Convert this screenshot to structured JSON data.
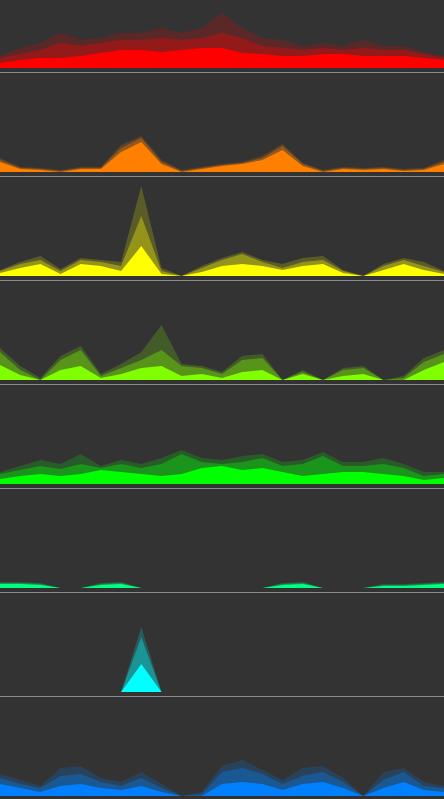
{
  "chart_data": [
    {
      "type": "area",
      "x": [
        0,
        1,
        2,
        3,
        4,
        5,
        6,
        7,
        8,
        9,
        10,
        11,
        12,
        13,
        14,
        15,
        16,
        17,
        18,
        19,
        20,
        21,
        22
      ],
      "xlim": [
        0,
        22
      ],
      "ylim": [
        0,
        100
      ],
      "series": [
        {
          "color": "#ff0000",
          "opacity": 0.2,
          "values": [
            12,
            20,
            25,
            35,
            28,
            30,
            35,
            35,
            40,
            35,
            40,
            55,
            40,
            30,
            28,
            22,
            25,
            22,
            28,
            22,
            22,
            16,
            12
          ]
        },
        {
          "color": "#ff0000",
          "opacity": 0.35,
          "values": [
            10,
            14,
            18,
            25,
            22,
            25,
            28,
            28,
            30,
            28,
            30,
            35,
            30,
            22,
            20,
            18,
            20,
            18,
            20,
            18,
            18,
            14,
            10
          ]
        },
        {
          "color": "#ff0000",
          "opacity": 1,
          "values": [
            5,
            8,
            10,
            10,
            12,
            15,
            18,
            18,
            16,
            18,
            20,
            20,
            15,
            14,
            12,
            12,
            14,
            14,
            12,
            12,
            12,
            10,
            8
          ]
        }
      ]
    },
    {
      "type": "area",
      "x": [
        0,
        1,
        2,
        3,
        4,
        5,
        6,
        7,
        8,
        9,
        10,
        11,
        12,
        13,
        14,
        15,
        16,
        17,
        18,
        19,
        20,
        21,
        22
      ],
      "xlim": [
        0,
        22
      ],
      "ylim": [
        0,
        100
      ],
      "series": [
        {
          "color": "#ff8000",
          "opacity": 0.2,
          "values": [
            14,
            5,
            4,
            2,
            5,
            5,
            27,
            36,
            12,
            2,
            5,
            8,
            10,
            16,
            28,
            9,
            2,
            5,
            4,
            5,
            3,
            4,
            12
          ]
        },
        {
          "color": "#ff8000",
          "opacity": 0.35,
          "values": [
            12,
            4,
            3,
            1,
            4,
            4,
            24,
            34,
            10,
            1,
            4,
            7,
            9,
            14,
            26,
            8,
            1,
            4,
            3,
            4,
            2,
            3,
            10
          ]
        },
        {
          "color": "#ff8000",
          "opacity": 1,
          "values": [
            10,
            3,
            2,
            0,
            3,
            3,
            20,
            30,
            8,
            0,
            3,
            6,
            8,
            12,
            22,
            6,
            0,
            3,
            2,
            3,
            1,
            2,
            8
          ]
        }
      ]
    },
    {
      "type": "area",
      "x": [
        0,
        1,
        2,
        3,
        4,
        5,
        6,
        7,
        8,
        9,
        10,
        11,
        12,
        13,
        14,
        15,
        16,
        17,
        18,
        19,
        20,
        21,
        22
      ],
      "xlim": [
        0,
        22
      ],
      "ylim": [
        0,
        100
      ],
      "series": [
        {
          "color": "#ffff00",
          "opacity": 0.2,
          "values": [
            6,
            14,
            20,
            7,
            18,
            16,
            14,
            90,
            8,
            0,
            10,
            18,
            24,
            16,
            12,
            18,
            20,
            6,
            0,
            12,
            18,
            14,
            5
          ]
        },
        {
          "color": "#ffff00",
          "opacity": 0.35,
          "values": [
            5,
            12,
            16,
            5,
            16,
            14,
            10,
            60,
            5,
            0,
            8,
            16,
            22,
            14,
            8,
            14,
            16,
            5,
            0,
            10,
            16,
            10,
            4
          ]
        },
        {
          "color": "#ffff00",
          "opacity": 1,
          "values": [
            3,
            8,
            12,
            2,
            12,
            10,
            5,
            30,
            2,
            0,
            4,
            10,
            12,
            10,
            6,
            10,
            12,
            3,
            0,
            6,
            12,
            6,
            2
          ]
        }
      ]
    },
    {
      "type": "area",
      "x": [
        0,
        1,
        2,
        3,
        4,
        5,
        6,
        7,
        8,
        9,
        10,
        11,
        12,
        13,
        14,
        15,
        16,
        17,
        18,
        19,
        20,
        21,
        22
      ],
      "xlim": [
        0,
        22
      ],
      "ylim": [
        0,
        100
      ],
      "series": [
        {
          "color": "#80ff00",
          "opacity": 0.2,
          "values": [
            32,
            14,
            2,
            24,
            34,
            6,
            16,
            28,
            55,
            16,
            14,
            8,
            24,
            26,
            0,
            10,
            0,
            12,
            14,
            0,
            4,
            22,
            30
          ]
        },
        {
          "color": "#80ff00",
          "opacity": 0.35,
          "values": [
            28,
            10,
            0,
            20,
            30,
            4,
            12,
            20,
            30,
            14,
            12,
            6,
            20,
            22,
            0,
            8,
            0,
            10,
            12,
            0,
            2,
            18,
            26
          ]
        },
        {
          "color": "#80ff00",
          "opacity": 1,
          "values": [
            15,
            5,
            0,
            10,
            14,
            2,
            6,
            12,
            14,
            4,
            6,
            2,
            8,
            10,
            0,
            6,
            0,
            4,
            6,
            0,
            0,
            10,
            18
          ]
        }
      ]
    },
    {
      "type": "area",
      "x": [
        0,
        1,
        2,
        3,
        4,
        5,
        6,
        7,
        8,
        9,
        10,
        11,
        12,
        13,
        14,
        15,
        16,
        17,
        18,
        19,
        20,
        21,
        22
      ],
      "xlim": [
        0,
        22
      ],
      "ylim": [
        0,
        100
      ],
      "series": [
        {
          "color": "#00ff00",
          "opacity": 0.2,
          "values": [
            12,
            18,
            24,
            20,
            30,
            18,
            24,
            20,
            26,
            34,
            26,
            24,
            28,
            30,
            22,
            24,
            32,
            22,
            22,
            26,
            20,
            12,
            12
          ]
        },
        {
          "color": "#00ff00",
          "opacity": 0.35,
          "values": [
            10,
            14,
            18,
            15,
            20,
            16,
            20,
            16,
            20,
            30,
            22,
            20,
            22,
            26,
            18,
            20,
            28,
            18,
            18,
            20,
            16,
            8,
            10
          ]
        },
        {
          "color": "#00ff00",
          "opacity": 1,
          "values": [
            5,
            8,
            10,
            8,
            10,
            14,
            12,
            10,
            8,
            10,
            16,
            18,
            14,
            16,
            12,
            8,
            10,
            12,
            12,
            10,
            8,
            4,
            6
          ]
        }
      ]
    },
    {
      "type": "area",
      "x": [
        0,
        1,
        2,
        3,
        4,
        5,
        6,
        7,
        8,
        9,
        10,
        11,
        12,
        13,
        14,
        15,
        16,
        17,
        18,
        19,
        20,
        21,
        22
      ],
      "xlim": [
        0,
        22
      ],
      "ylim": [
        0,
        100
      ],
      "series": [
        {
          "color": "#00ff80",
          "opacity": 0.2,
          "values": [
            6,
            6,
            5,
            0,
            0,
            5,
            6,
            0,
            0,
            0,
            0,
            0,
            0,
            0,
            5,
            6,
            0,
            0,
            0,
            4,
            4,
            5,
            6
          ]
        },
        {
          "color": "#00ff80",
          "opacity": 0.35,
          "values": [
            5,
            5,
            4,
            0,
            0,
            4,
            5,
            0,
            0,
            0,
            0,
            0,
            0,
            0,
            4,
            5,
            0,
            0,
            0,
            3,
            3,
            4,
            5
          ]
        },
        {
          "color": "#00ff80",
          "opacity": 1,
          "values": [
            4,
            4,
            3,
            0,
            0,
            3,
            4,
            0,
            0,
            0,
            0,
            0,
            0,
            0,
            3,
            4,
            0,
            0,
            0,
            2,
            2,
            3,
            4
          ]
        }
      ]
    },
    {
      "type": "area",
      "x": [
        0,
        1,
        2,
        3,
        4,
        5,
        6,
        7,
        8,
        9,
        10,
        11,
        12,
        13,
        14,
        15,
        16,
        17,
        18,
        19,
        20,
        21,
        22
      ],
      "xlim": [
        0,
        22
      ],
      "ylim": [
        0,
        100
      ],
      "series": [
        {
          "color": "#00ffff",
          "opacity": 0.2,
          "values": [
            0,
            0,
            0,
            0,
            0,
            0,
            0,
            65,
            0,
            0,
            0,
            0,
            0,
            0,
            0,
            0,
            0,
            0,
            0,
            0,
            0,
            0,
            0
          ]
        },
        {
          "color": "#00ffff",
          "opacity": 0.35,
          "values": [
            0,
            0,
            0,
            0,
            0,
            0,
            0,
            55,
            0,
            0,
            0,
            0,
            0,
            0,
            0,
            0,
            0,
            0,
            0,
            0,
            0,
            0,
            0
          ]
        },
        {
          "color": "#00ffff",
          "opacity": 1,
          "values": [
            0,
            0,
            0,
            0,
            0,
            0,
            0,
            28,
            0,
            0,
            0,
            0,
            0,
            0,
            0,
            0,
            0,
            0,
            0,
            0,
            0,
            0,
            0
          ]
        }
      ]
    },
    {
      "type": "area",
      "x": [
        0,
        1,
        2,
        3,
        4,
        5,
        6,
        7,
        8,
        9,
        10,
        11,
        12,
        13,
        14,
        15,
        16,
        17,
        18,
        19,
        20,
        21,
        22
      ],
      "xlim": [
        0,
        22
      ],
      "ylim": [
        0,
        100
      ],
      "series": [
        {
          "color": "#0080ff",
          "opacity": 0.2,
          "values": [
            22,
            16,
            10,
            28,
            30,
            18,
            14,
            24,
            12,
            0,
            4,
            30,
            36,
            26,
            16,
            28,
            30,
            18,
            0,
            24,
            28,
            14,
            10
          ]
        },
        {
          "color": "#0080ff",
          "opacity": 0.35,
          "values": [
            18,
            12,
            8,
            20,
            22,
            14,
            10,
            18,
            8,
            0,
            2,
            24,
            28,
            22,
            12,
            20,
            24,
            14,
            0,
            16,
            24,
            10,
            8
          ]
        },
        {
          "color": "#0080ff",
          "opacity": 1,
          "values": [
            12,
            8,
            4,
            10,
            12,
            8,
            6,
            10,
            4,
            0,
            0,
            12,
            14,
            12,
            6,
            12,
            14,
            8,
            0,
            8,
            14,
            6,
            4
          ]
        }
      ]
    }
  ]
}
